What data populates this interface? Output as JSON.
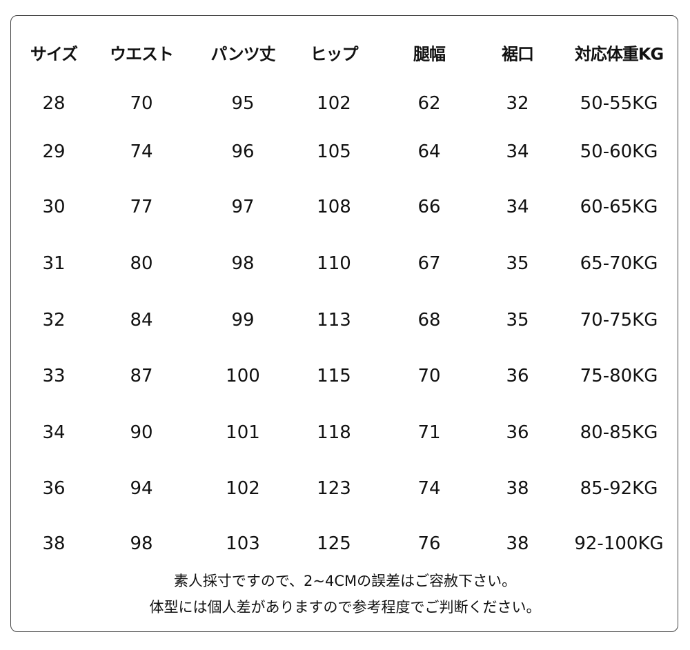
{
  "table": {
    "headers": [
      "サイズ",
      "ウエスト",
      "パンツ丈",
      "ヒップ",
      "腿幅",
      "裾口",
      "対応体重KG"
    ],
    "rows": [
      [
        "28",
        "70",
        "95",
        "102",
        "62",
        "32",
        "50-55KG"
      ],
      [
        "29",
        "74",
        "96",
        "105",
        "64",
        "34",
        "50-60KG"
      ],
      [
        "30",
        "77",
        "97",
        "108",
        "66",
        "34",
        "60-65KG"
      ],
      [
        "31",
        "80",
        "98",
        "110",
        "67",
        "35",
        "65-70KG"
      ],
      [
        "32",
        "84",
        "99",
        "113",
        "68",
        "35",
        "70-75KG"
      ],
      [
        "33",
        "87",
        "100",
        "115",
        "70",
        "36",
        "75-80KG"
      ],
      [
        "34",
        "90",
        "101",
        "118",
        "71",
        "36",
        "80-85KG"
      ],
      [
        "36",
        "94",
        "102",
        "123",
        "74",
        "38",
        "85-92KG"
      ],
      [
        "38",
        "98",
        "103",
        "125",
        "76",
        "38",
        "92-100KG"
      ]
    ]
  },
  "notes": {
    "line1": "素人採寸ですので、2~4CMの誤差はご容赦下さい。",
    "line2": "体型には個人差がありますので参考程度でご判断ください。"
  }
}
